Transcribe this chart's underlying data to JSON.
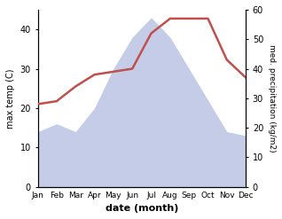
{
  "months": [
    "Jan",
    "Feb",
    "Mar",
    "Apr",
    "May",
    "Jun",
    "Jul",
    "Aug",
    "Sep",
    "Oct",
    "Nov",
    "Dec"
  ],
  "month_indices": [
    1,
    2,
    3,
    4,
    5,
    6,
    7,
    8,
    9,
    10,
    11,
    12
  ],
  "precipitation": [
    14,
    16,
    14,
    20,
    30,
    38,
    43,
    38,
    30,
    22,
    14,
    13
  ],
  "max_temp": [
    28,
    29,
    34,
    38,
    39,
    40,
    52,
    57,
    57,
    57,
    43,
    37
  ],
  "temp_color": "#c0504d",
  "precip_fill_color": "#c5cce8",
  "xlabel": "date (month)",
  "ylabel_left": "max temp (C)",
  "ylabel_right": "med. precipitation (kg/m2)",
  "ylim_left": [
    0,
    45
  ],
  "ylim_right": [
    0,
    60
  ],
  "yticks_left": [
    0,
    10,
    20,
    30,
    40
  ],
  "yticks_right": [
    0,
    10,
    20,
    30,
    40,
    50,
    60
  ],
  "background_color": "#ffffff",
  "line_width": 1.8
}
